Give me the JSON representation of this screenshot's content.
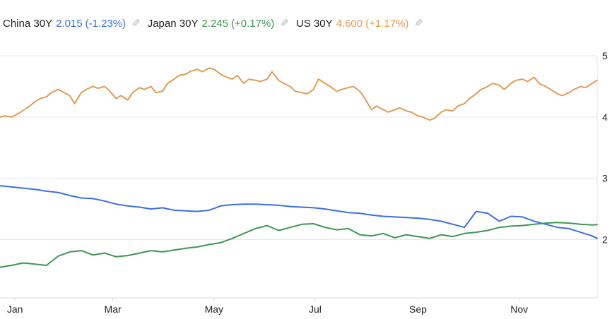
{
  "legend": [
    {
      "name": "China 30Y",
      "value": "2.015",
      "change": "(-1.23%)",
      "color": "#3d6fe0",
      "edit_icon": "pencil-icon"
    },
    {
      "name": "Japan 30Y",
      "value": "2.245",
      "change": "(+0.17%)",
      "color": "#3f9652",
      "edit_icon": "pencil-icon"
    },
    {
      "name": "US 30Y",
      "value": "4.600",
      "change": "(+1.17%)",
      "color": "#e39b57",
      "edit_icon": "pencil-icon"
    }
  ],
  "chart_data": {
    "type": "line",
    "title": "",
    "xlabel": "",
    "ylabel": "",
    "x_ticks": [
      "Jan",
      "Mar",
      "May",
      "Jul",
      "Sep",
      "Nov"
    ],
    "y_ticks": [
      2,
      3,
      4,
      5
    ],
    "ylim": [
      1.05,
      5.45
    ],
    "xlim": [
      "2024-12-23",
      "2025-12-18"
    ],
    "grid": true,
    "series": [
      {
        "name": "US 30Y",
        "color": "#e39b57",
        "points": [
          [
            "2024-12-23",
            4.0
          ],
          [
            "2024-12-26",
            4.02
          ],
          [
            "2024-12-30",
            4.0
          ],
          [
            "2025-01-02",
            4.04
          ],
          [
            "2025-01-06",
            4.11
          ],
          [
            "2025-01-09",
            4.16
          ],
          [
            "2025-01-13",
            4.25
          ],
          [
            "2025-01-16",
            4.3
          ],
          [
            "2025-01-20",
            4.33
          ],
          [
            "2025-01-23",
            4.4
          ],
          [
            "2025-01-27",
            4.45
          ],
          [
            "2025-01-30",
            4.41
          ],
          [
            "2025-02-03",
            4.35
          ],
          [
            "2025-02-06",
            4.22
          ],
          [
            "2025-02-10",
            4.4
          ],
          [
            "2025-02-13",
            4.45
          ],
          [
            "2025-02-17",
            4.5
          ],
          [
            "2025-02-20",
            4.47
          ],
          [
            "2025-02-24",
            4.5
          ],
          [
            "2025-02-27",
            4.43
          ],
          [
            "2025-03-03",
            4.3
          ],
          [
            "2025-03-06",
            4.35
          ],
          [
            "2025-03-10",
            4.28
          ],
          [
            "2025-03-13",
            4.4
          ],
          [
            "2025-03-17",
            4.48
          ],
          [
            "2025-03-20",
            4.45
          ],
          [
            "2025-03-24",
            4.5
          ],
          [
            "2025-03-27",
            4.4
          ],
          [
            "2025-03-31",
            4.42
          ],
          [
            "2025-04-03",
            4.55
          ],
          [
            "2025-04-07",
            4.62
          ],
          [
            "2025-04-10",
            4.68
          ],
          [
            "2025-04-14",
            4.7
          ],
          [
            "2025-04-17",
            4.75
          ],
          [
            "2025-04-21",
            4.78
          ],
          [
            "2025-04-24",
            4.74
          ],
          [
            "2025-04-28",
            4.8
          ],
          [
            "2025-05-01",
            4.78
          ],
          [
            "2025-05-05",
            4.7
          ],
          [
            "2025-05-08",
            4.66
          ],
          [
            "2025-05-12",
            4.62
          ],
          [
            "2025-05-15",
            4.68
          ],
          [
            "2025-05-19",
            4.55
          ],
          [
            "2025-05-22",
            4.62
          ],
          [
            "2025-05-26",
            4.6
          ],
          [
            "2025-05-29",
            4.58
          ],
          [
            "2025-06-02",
            4.62
          ],
          [
            "2025-06-05",
            4.74
          ],
          [
            "2025-06-09",
            4.6
          ],
          [
            "2025-06-12",
            4.55
          ],
          [
            "2025-06-16",
            4.5
          ],
          [
            "2025-06-19",
            4.42
          ],
          [
            "2025-06-23",
            4.4
          ],
          [
            "2025-06-26",
            4.38
          ],
          [
            "2025-06-30",
            4.45
          ],
          [
            "2025-07-03",
            4.62
          ],
          [
            "2025-07-07",
            4.55
          ],
          [
            "2025-07-10",
            4.5
          ],
          [
            "2025-07-14",
            4.42
          ],
          [
            "2025-07-17",
            4.45
          ],
          [
            "2025-07-21",
            4.48
          ],
          [
            "2025-07-24",
            4.5
          ],
          [
            "2025-07-28",
            4.42
          ],
          [
            "2025-07-31",
            4.3
          ],
          [
            "2025-08-04",
            4.12
          ],
          [
            "2025-08-07",
            4.18
          ],
          [
            "2025-08-11",
            4.12
          ],
          [
            "2025-08-14",
            4.08
          ],
          [
            "2025-08-18",
            4.12
          ],
          [
            "2025-08-21",
            4.15
          ],
          [
            "2025-08-25",
            4.1
          ],
          [
            "2025-08-28",
            4.08
          ],
          [
            "2025-09-01",
            4.02
          ],
          [
            "2025-09-04",
            4.0
          ],
          [
            "2025-09-08",
            3.95
          ],
          [
            "2025-09-11",
            3.98
          ],
          [
            "2025-09-15",
            4.08
          ],
          [
            "2025-09-18",
            4.12
          ],
          [
            "2025-09-22",
            4.1
          ],
          [
            "2025-09-25",
            4.18
          ],
          [
            "2025-09-29",
            4.22
          ],
          [
            "2025-10-02",
            4.3
          ],
          [
            "2025-10-06",
            4.38
          ],
          [
            "2025-10-09",
            4.45
          ],
          [
            "2025-10-13",
            4.5
          ],
          [
            "2025-10-16",
            4.55
          ],
          [
            "2025-10-20",
            4.52
          ],
          [
            "2025-10-23",
            4.45
          ],
          [
            "2025-10-27",
            4.55
          ],
          [
            "2025-10-30",
            4.6
          ],
          [
            "2025-11-03",
            4.62
          ],
          [
            "2025-11-06",
            4.58
          ],
          [
            "2025-11-10",
            4.65
          ],
          [
            "2025-11-13",
            4.55
          ],
          [
            "2025-11-17",
            4.5
          ],
          [
            "2025-11-20",
            4.45
          ],
          [
            "2025-11-24",
            4.38
          ],
          [
            "2025-11-27",
            4.35
          ],
          [
            "2025-12-01",
            4.4
          ],
          [
            "2025-12-04",
            4.45
          ],
          [
            "2025-12-08",
            4.5
          ],
          [
            "2025-12-11",
            4.48
          ],
          [
            "2025-12-15",
            4.55
          ],
          [
            "2025-12-18",
            4.6
          ]
        ]
      },
      {
        "name": "China 30Y",
        "color": "#3d6fe0",
        "points": [
          [
            "2024-12-23",
            2.88
          ],
          [
            "2024-12-30",
            2.86
          ],
          [
            "2025-01-06",
            2.84
          ],
          [
            "2025-01-13",
            2.82
          ],
          [
            "2025-01-20",
            2.79
          ],
          [
            "2025-01-27",
            2.77
          ],
          [
            "2025-02-03",
            2.72
          ],
          [
            "2025-02-10",
            2.68
          ],
          [
            "2025-02-17",
            2.67
          ],
          [
            "2025-02-24",
            2.63
          ],
          [
            "2025-03-03",
            2.58
          ],
          [
            "2025-03-10",
            2.55
          ],
          [
            "2025-03-17",
            2.53
          ],
          [
            "2025-03-24",
            2.5
          ],
          [
            "2025-03-31",
            2.52
          ],
          [
            "2025-04-07",
            2.48
          ],
          [
            "2025-04-14",
            2.47
          ],
          [
            "2025-04-21",
            2.46
          ],
          [
            "2025-04-28",
            2.48
          ],
          [
            "2025-05-05",
            2.55
          ],
          [
            "2025-05-12",
            2.57
          ],
          [
            "2025-05-19",
            2.58
          ],
          [
            "2025-05-26",
            2.58
          ],
          [
            "2025-06-02",
            2.57
          ],
          [
            "2025-06-09",
            2.56
          ],
          [
            "2025-06-16",
            2.54
          ],
          [
            "2025-06-23",
            2.53
          ],
          [
            "2025-06-30",
            2.52
          ],
          [
            "2025-07-07",
            2.5
          ],
          [
            "2025-07-14",
            2.47
          ],
          [
            "2025-07-21",
            2.44
          ],
          [
            "2025-07-28",
            2.43
          ],
          [
            "2025-08-04",
            2.4
          ],
          [
            "2025-08-11",
            2.38
          ],
          [
            "2025-08-18",
            2.37
          ],
          [
            "2025-08-25",
            2.36
          ],
          [
            "2025-09-01",
            2.35
          ],
          [
            "2025-09-08",
            2.33
          ],
          [
            "2025-09-15",
            2.3
          ],
          [
            "2025-09-22",
            2.25
          ],
          [
            "2025-09-29",
            2.2
          ],
          [
            "2025-10-06",
            2.46
          ],
          [
            "2025-10-13",
            2.43
          ],
          [
            "2025-10-20",
            2.3
          ],
          [
            "2025-10-27",
            2.38
          ],
          [
            "2025-11-03",
            2.37
          ],
          [
            "2025-11-10",
            2.3
          ],
          [
            "2025-11-17",
            2.25
          ],
          [
            "2025-11-24",
            2.2
          ],
          [
            "2025-12-01",
            2.18
          ],
          [
            "2025-12-08",
            2.12
          ],
          [
            "2025-12-15",
            2.06
          ],
          [
            "2025-12-18",
            2.02
          ]
        ]
      },
      {
        "name": "Japan 30Y",
        "color": "#3f9652",
        "points": [
          [
            "2024-12-23",
            1.55
          ],
          [
            "2024-12-30",
            1.58
          ],
          [
            "2025-01-06",
            1.62
          ],
          [
            "2025-01-13",
            1.6
          ],
          [
            "2025-01-20",
            1.58
          ],
          [
            "2025-01-27",
            1.73
          ],
          [
            "2025-02-03",
            1.8
          ],
          [
            "2025-02-10",
            1.82
          ],
          [
            "2025-02-17",
            1.75
          ],
          [
            "2025-02-24",
            1.78
          ],
          [
            "2025-03-03",
            1.72
          ],
          [
            "2025-03-10",
            1.74
          ],
          [
            "2025-03-17",
            1.78
          ],
          [
            "2025-03-24",
            1.82
          ],
          [
            "2025-03-31",
            1.8
          ],
          [
            "2025-04-07",
            1.83
          ],
          [
            "2025-04-14",
            1.86
          ],
          [
            "2025-04-21",
            1.88
          ],
          [
            "2025-04-28",
            1.92
          ],
          [
            "2025-05-05",
            1.95
          ],
          [
            "2025-05-12",
            2.02
          ],
          [
            "2025-05-19",
            2.1
          ],
          [
            "2025-05-26",
            2.18
          ],
          [
            "2025-06-02",
            2.23
          ],
          [
            "2025-06-09",
            2.15
          ],
          [
            "2025-06-16",
            2.2
          ],
          [
            "2025-06-23",
            2.25
          ],
          [
            "2025-06-30",
            2.26
          ],
          [
            "2025-07-07",
            2.2
          ],
          [
            "2025-07-14",
            2.16
          ],
          [
            "2025-07-21",
            2.18
          ],
          [
            "2025-07-28",
            2.08
          ],
          [
            "2025-08-04",
            2.06
          ],
          [
            "2025-08-11",
            2.1
          ],
          [
            "2025-08-18",
            2.03
          ],
          [
            "2025-08-25",
            2.08
          ],
          [
            "2025-09-01",
            2.05
          ],
          [
            "2025-09-08",
            2.02
          ],
          [
            "2025-09-15",
            2.08
          ],
          [
            "2025-09-22",
            2.05
          ],
          [
            "2025-09-29",
            2.1
          ],
          [
            "2025-10-06",
            2.12
          ],
          [
            "2025-10-13",
            2.15
          ],
          [
            "2025-10-20",
            2.2
          ],
          [
            "2025-10-27",
            2.22
          ],
          [
            "2025-11-03",
            2.23
          ],
          [
            "2025-11-10",
            2.25
          ],
          [
            "2025-11-17",
            2.27
          ],
          [
            "2025-11-24",
            2.28
          ],
          [
            "2025-12-01",
            2.27
          ],
          [
            "2025-12-08",
            2.25
          ],
          [
            "2025-12-15",
            2.24
          ],
          [
            "2025-12-18",
            2.245
          ]
        ]
      }
    ]
  }
}
